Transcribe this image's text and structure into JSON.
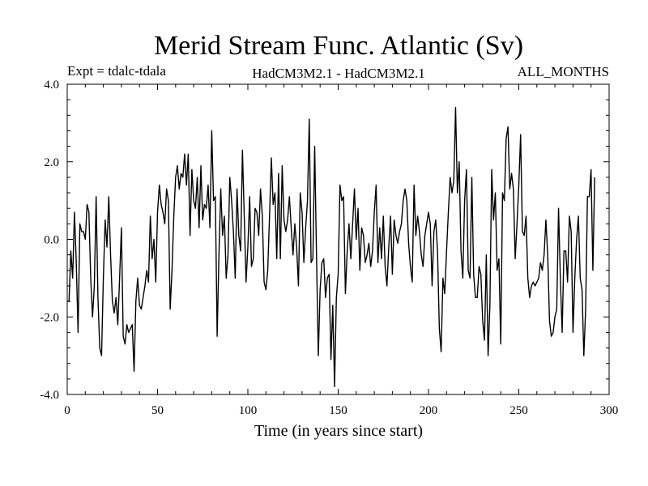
{
  "chart_data": {
    "type": "line",
    "title": "Merid Stream Func. Atlantic (Sv)",
    "subtitle_left": "Expt = tdalc-tdala",
    "subtitle_center": "HadCM3M2.1 - HadCM3M2.1",
    "subtitle_right": "ALL_MONTHS",
    "xlabel": "Time (in years since start)",
    "ylabel": "",
    "xlim": [
      0,
      300
    ],
    "ylim": [
      -4.0,
      4.0
    ],
    "x_ticks": [
      "0",
      "50",
      "100",
      "150",
      "200",
      "250",
      "300"
    ],
    "y_ticks": [
      "-4.0",
      "-2.0",
      "0.0",
      "2.0",
      "4.0"
    ],
    "grid": false,
    "series": [
      {
        "name": "Merid Stream Func.",
        "color": "#000000",
        "x_start": 0,
        "x_step": 1,
        "values": [
          -1.6,
          -1.6,
          -0.3,
          -1.0,
          0.7,
          -0.6,
          -2.4,
          0.4,
          0.2,
          0.2,
          0.0,
          0.9,
          0.7,
          -1.0,
          -2.0,
          -1.2,
          1.1,
          -1.5,
          -2.8,
          -3.0,
          -1.0,
          0.5,
          -0.2,
          1.1,
          -0.4,
          -1.6,
          -1.9,
          -1.5,
          -2.2,
          -1.0,
          0.3,
          -2.5,
          -2.7,
          -2.2,
          -2.4,
          -2.3,
          -2.2,
          -3.4,
          -1.6,
          -1.0,
          -1.7,
          -1.8,
          -1.5,
          -1.2,
          -0.8,
          -1.1,
          0.6,
          -0.5,
          0.0,
          -1.1,
          0.7,
          1.4,
          0.9,
          0.7,
          0.4,
          1.3,
          1.0,
          -1.8,
          -0.8,
          0.6,
          1.6,
          1.9,
          1.3,
          1.7,
          1.6,
          2.2,
          1.4,
          2.2,
          0.1,
          1.8,
          1.0,
          0.8,
          1.6,
          0.3,
          1.9,
          0.5,
          0.9,
          0.8,
          1.4,
          0.3,
          2.8,
          1.0,
          1.1,
          -2.5,
          -0.4,
          1.3,
          0.1,
          0.6,
          -1.0,
          -0.4,
          1.6,
          1.0,
          0.2,
          -1.0,
          1.3,
          0.1,
          -0.3,
          2.3,
          0.6,
          -1.1,
          -0.2,
          1.1,
          -0.7,
          -0.5,
          0.8,
          0.7,
          0.1,
          1.3,
          0.6,
          -1.1,
          -1.3,
          -0.8,
          0.6,
          2.1,
          0.9,
          1.2,
          -0.5,
          1.7,
          -0.5,
          1.9,
          0.5,
          0.2,
          0.5,
          1.1,
          0.3,
          -0.4,
          0.4,
          -0.2,
          -1.2,
          1.2,
          0.7,
          -0.6,
          0.3,
          1.0,
          3.1,
          -0.6,
          -0.5,
          2.4,
          -0.4,
          -3.0,
          -1.3,
          -0.6,
          -0.5,
          -1.5,
          -1.0,
          -0.9,
          -3.1,
          -1.7,
          -3.8,
          -1.5,
          -0.9,
          1.4,
          1.0,
          1.1,
          -1.4,
          -0.3,
          0.4,
          -0.5,
          0.4,
          1.3,
          0.0,
          0.8,
          -0.8,
          0.3,
          0.1,
          -0.6,
          -0.4,
          -0.1,
          -0.7,
          -0.3,
          0.7,
          1.4,
          -0.6,
          0.3,
          -0.5,
          0.6,
          -0.7,
          -1.2,
          -0.2,
          0.6,
          -0.9,
          0.5,
          0.1,
          -0.1,
          0.2,
          0.4,
          1.0,
          1.3,
          1.0,
          -0.1,
          -0.7,
          -1.1,
          1.4,
          0.1,
          0.6,
          0.2,
          -0.4,
          -0.7,
          0.1,
          0.4,
          0.7,
          0.4,
          -1.2,
          0.2,
          0.5,
          -0.3,
          -2.3,
          -2.9,
          -1.0,
          -1.4,
          -0.3,
          0.7,
          1.6,
          1.2,
          1.5,
          3.4,
          1.2,
          2.0,
          -0.3,
          -1.0,
          1.0,
          1.8,
          -0.8,
          -1.0,
          1.6,
          -0.9,
          -1.5,
          -1.5,
          -0.7,
          -0.9,
          -2.1,
          -2.6,
          -0.4,
          -3.0,
          -1.7,
          1.8,
          0.5,
          1.2,
          -0.8,
          -0.5,
          -2.7,
          1.2,
          1.0,
          2.6,
          2.9,
          1.3,
          1.7,
          1.3,
          -0.5,
          0.4,
          1.4,
          2.7,
          0.2,
          0.1,
          0.6,
          -1.0,
          -1.5,
          -1.2,
          -1.1,
          -1.2,
          -1.1,
          -1.0,
          -0.6,
          -0.8,
          -0.4,
          0.5,
          -0.4,
          -2.1,
          -2.5,
          -2.4,
          -2.0,
          -1.8,
          0.8,
          -1.0,
          -2.4,
          -0.3,
          -0.3,
          -1.1,
          0.6,
          0.2,
          -2.4,
          -1.0,
          0.0,
          0.6,
          -1.0,
          -1.3,
          -3.0,
          -1.8,
          1.1,
          1.1,
          1.8,
          -0.8,
          1.6
        ]
      }
    ]
  }
}
